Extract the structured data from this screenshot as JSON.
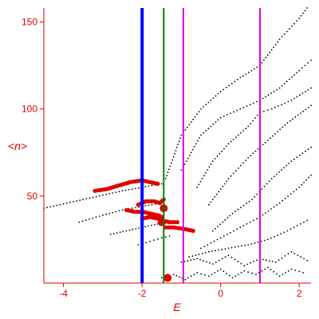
{
  "chart_data": {
    "type": "scatter",
    "title": "",
    "xlabel": "E",
    "ylabel": "<n>",
    "xlim": [
      -4.5,
      2.3
    ],
    "ylim": [
      0,
      158
    ],
    "x_ticks": [
      -4,
      -2,
      0,
      2
    ],
    "y_ticks": [
      50,
      100,
      150
    ],
    "x_tick_labels": [
      "-4",
      "-2",
      "0",
      "2"
    ],
    "y_tick_labels": [
      "50",
      "100",
      "150"
    ],
    "grid": false,
    "legend": "none",
    "colors": {
      "axes": "#e00000",
      "black_points": "#000000",
      "red_points": "#e00000",
      "blue_line": "#0000ff",
      "green_line": "#008000",
      "magenta_line": "#e000e0"
    },
    "vertical_lines": [
      {
        "x": -2.0,
        "color": "blue"
      },
      {
        "x": -1.45,
        "color": "green"
      },
      {
        "x": -0.95,
        "color": "magenta"
      },
      {
        "x": 1.0,
        "color": "magenta"
      }
    ],
    "black_bands": [
      {
        "x": [
          -4.5,
          -3.5,
          -2.5,
          -2.0,
          -1.5
        ],
        "y": [
          43,
          48,
          53,
          55,
          57
        ]
      },
      {
        "x": [
          -3.6,
          -3.0,
          -2.5,
          -2.0,
          -1.5
        ],
        "y": [
          35,
          39,
          42,
          44,
          46
        ]
      },
      {
        "x": [
          -2.8,
          -2.4,
          -2.0,
          -1.6,
          -1.2
        ],
        "y": [
          28,
          30,
          32,
          34,
          35
        ]
      },
      {
        "x": [
          -2.1,
          -1.8,
          -1.5,
          -1.3
        ],
        "y": [
          22,
          24,
          26,
          27
        ]
      },
      {
        "x": [
          -1.4,
          -1.0,
          -0.5,
          0.0,
          0.5,
          1.0,
          1.5,
          2.0,
          2.2
        ],
        "y": [
          60,
          85,
          100,
          110,
          118,
          125,
          140,
          152,
          158
        ]
      },
      {
        "x": [
          -1.0,
          -0.5,
          0.0,
          0.5,
          1.0,
          1.5,
          2.0,
          2.3
        ],
        "y": [
          65,
          85,
          95,
          100,
          105,
          112,
          122,
          128
        ]
      },
      {
        "x": [
          -0.6,
          -0.2,
          0.2,
          0.7,
          1.0,
          1.3,
          1.8,
          2.3
        ],
        "y": [
          55,
          70,
          80,
          90,
          98,
          100,
          105,
          112
        ]
      },
      {
        "x": [
          -0.3,
          0.2,
          0.7,
          1.2,
          1.7,
          2.3
        ],
        "y": [
          45,
          60,
          72,
          82,
          92,
          102
        ]
      },
      {
        "x": [
          -0.2,
          0.3,
          0.8,
          1.3,
          1.8,
          2.3
        ],
        "y": [
          30,
          40,
          48,
          60,
          70,
          78
        ]
      },
      {
        "x": [
          -0.5,
          0.0,
          0.5,
          1.0,
          1.5,
          2.0,
          2.3
        ],
        "y": [
          20,
          26,
          32,
          38,
          46,
          55,
          62
        ]
      },
      {
        "x": [
          -0.8,
          -0.3,
          0.2,
          0.7,
          1.2,
          1.7,
          2.2
        ],
        "y": [
          15,
          18,
          20,
          22,
          25,
          30,
          36
        ]
      },
      {
        "x": [
          -1.0,
          -0.6,
          -0.2,
          0.2,
          0.6,
          1.0,
          1.4,
          1.8,
          2.2
        ],
        "y": [
          12,
          14,
          11,
          16,
          10,
          14,
          12,
          18,
          13
        ]
      },
      {
        "x": [
          -1.5,
          -1.2,
          -0.9,
          -0.6,
          -0.3,
          0.0,
          0.3,
          0.6,
          0.9,
          1.2,
          1.5,
          1.8,
          2.1
        ],
        "y": [
          3,
          5,
          2,
          6,
          4,
          8,
          3,
          7,
          5,
          9,
          4,
          8,
          6
        ]
      }
    ],
    "red_bands": [
      {
        "x": [
          -3.2,
          -2.9,
          -2.6,
          -2.3,
          -2.0,
          -1.8,
          -1.6
        ],
        "y": [
          53,
          54,
          56,
          58,
          59,
          58,
          57
        ]
      },
      {
        "x": [
          -2.1,
          -1.9,
          -1.7,
          -1.55,
          -1.45
        ],
        "y": [
          45,
          47,
          47,
          46,
          48
        ]
      },
      {
        "x": [
          -2.4,
          -2.2,
          -2.0,
          -1.8,
          -1.6,
          -1.5
        ],
        "y": [
          42,
          41,
          41,
          40,
          39,
          38
        ]
      },
      {
        "x": [
          -2.0,
          -1.8,
          -1.6,
          -1.5,
          -1.3,
          -1.1
        ],
        "y": [
          37,
          38,
          37,
          36,
          35,
          35
        ]
      },
      {
        "x": [
          -1.4,
          -1.2,
          -0.9,
          -0.7
        ],
        "y": [
          32,
          32,
          31,
          30
        ]
      }
    ],
    "red_large_points": [
      {
        "x": -1.45,
        "y": 43
      },
      {
        "x": -1.5,
        "y": 35
      },
      {
        "x": -1.35,
        "y": 3
      }
    ]
  }
}
